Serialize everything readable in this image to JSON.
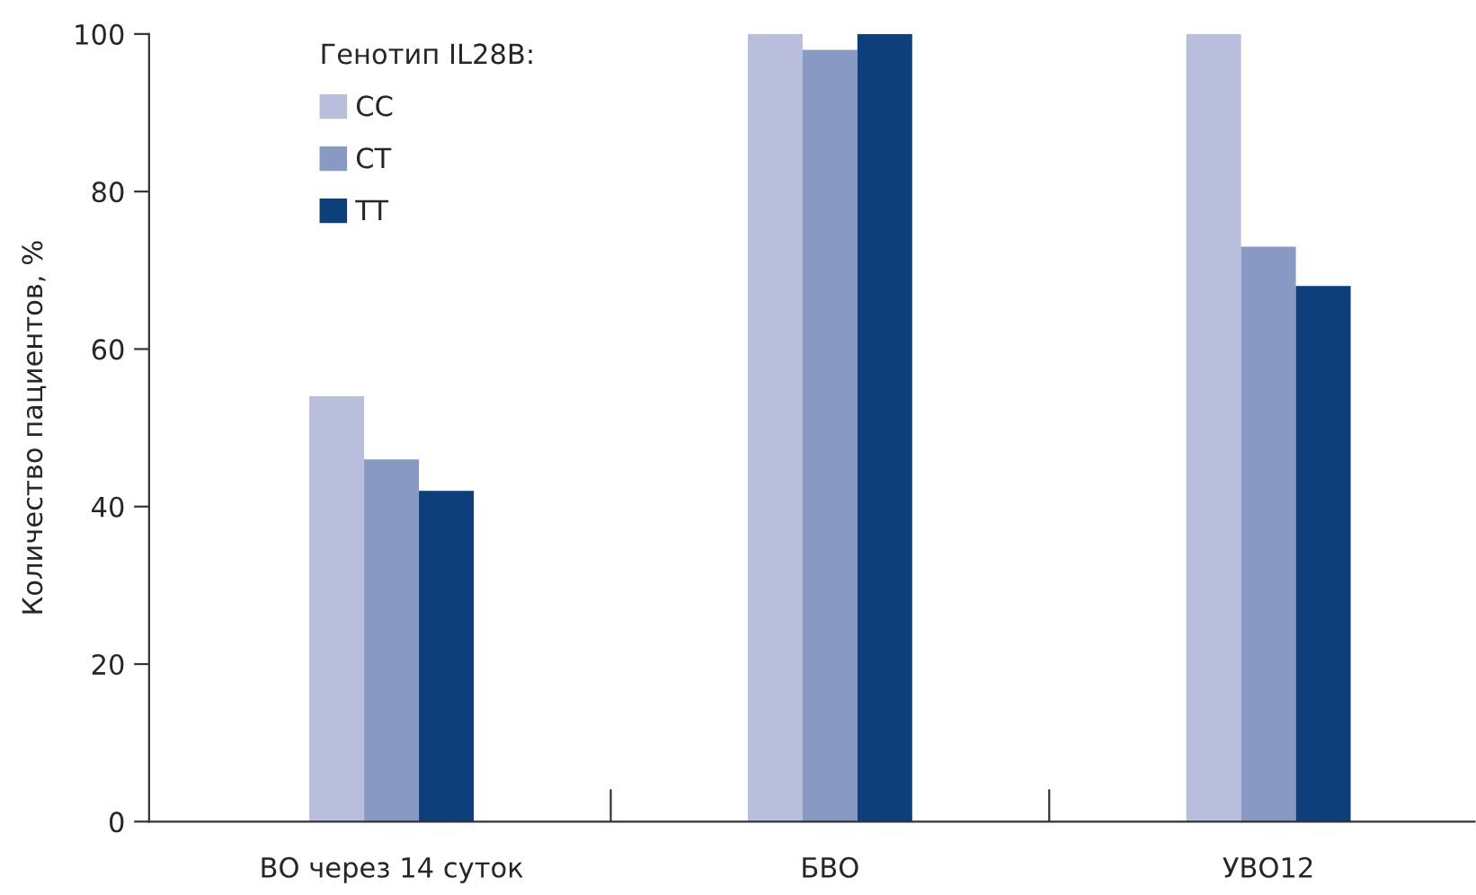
{
  "chart_data": {
    "type": "bar",
    "ylabel": "Количество пациентов, %",
    "legend_title": "Генотип IL28B:",
    "categories": [
      "ВО через 14 суток",
      "БВО",
      "УВО12"
    ],
    "series": [
      {
        "name": "CC",
        "color": "#b8bedb",
        "values": [
          54,
          100,
          100
        ]
      },
      {
        "name": "CT",
        "color": "#8899c4",
        "values": [
          46,
          98,
          73
        ]
      },
      {
        "name": "TT",
        "color": "#0d3f7a",
        "values": [
          42,
          100,
          68
        ]
      }
    ],
    "ylim": [
      0,
      100
    ],
    "yticks": [
      0,
      20,
      40,
      60,
      80,
      100
    ],
    "grid": false,
    "legend": "top left"
  }
}
